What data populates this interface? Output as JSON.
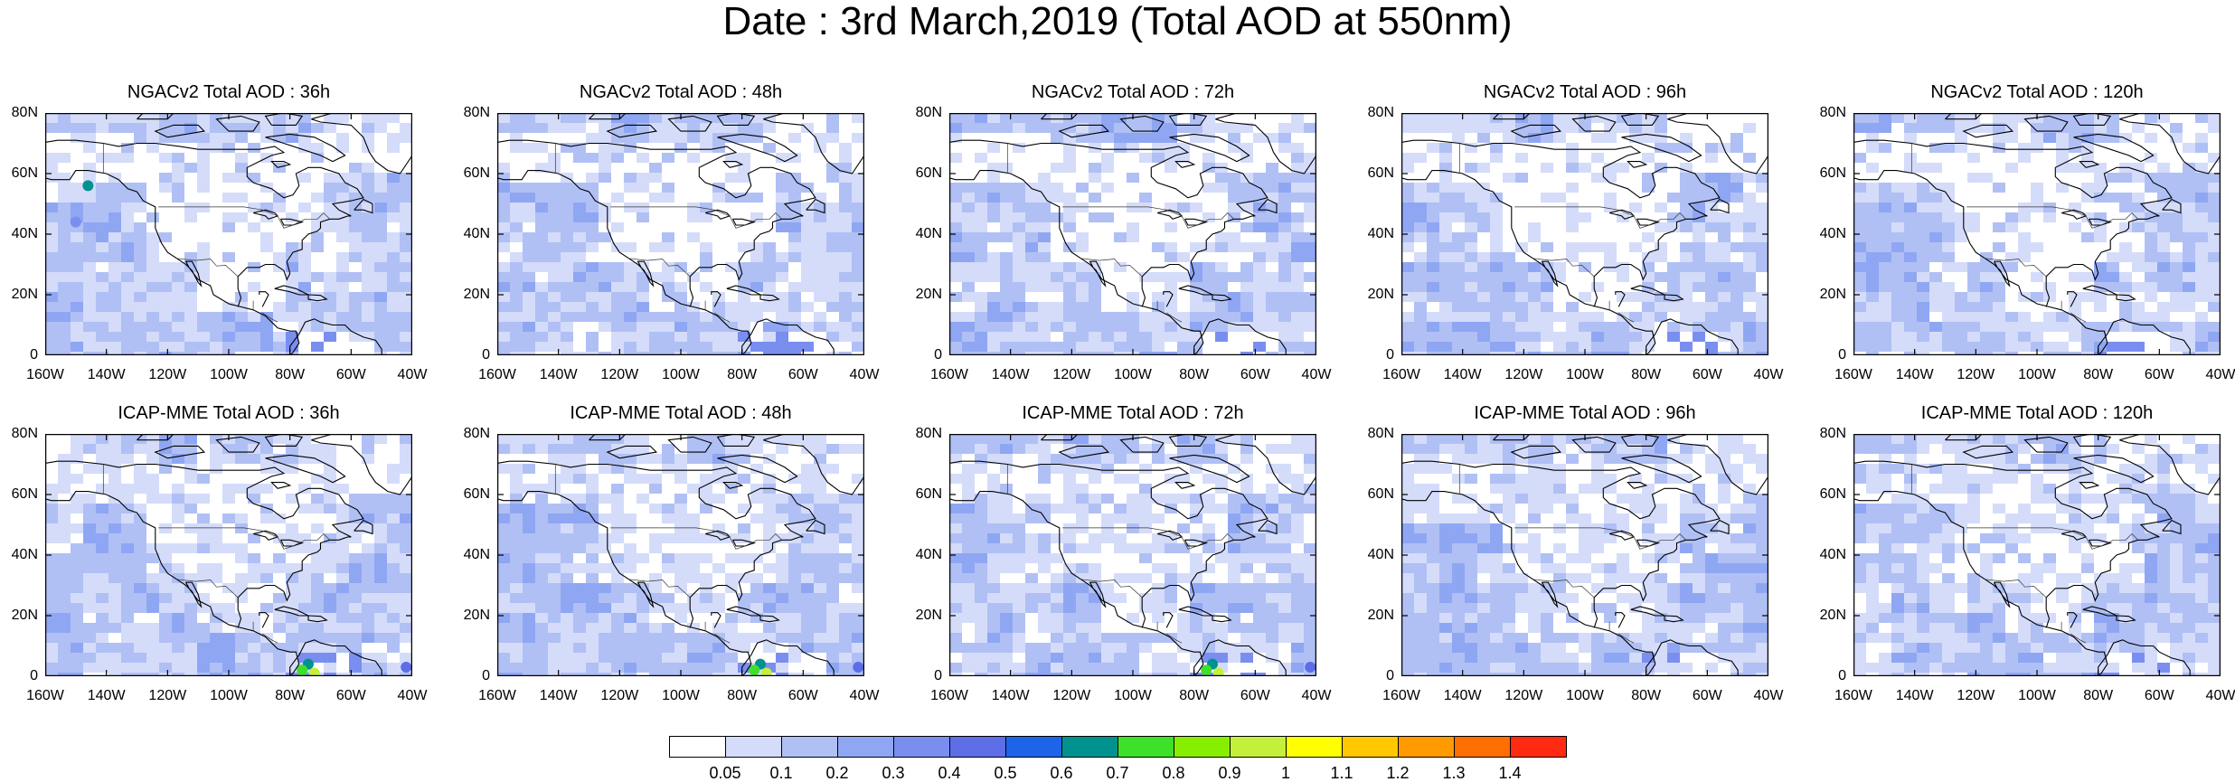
{
  "title": "Date : 3rd March,2019 (Total AOD at 550nm)",
  "panels": [
    {
      "title": "NGACv2 Total AOD : 36h"
    },
    {
      "title": "NGACv2 Total AOD : 48h"
    },
    {
      "title": "NGACv2 Total AOD : 72h"
    },
    {
      "title": "NGACv2 Total AOD : 96h"
    },
    {
      "title": "NGACv2 Total AOD : 120h"
    },
    {
      "title": "ICAP-MME Total AOD : 36h"
    },
    {
      "title": "ICAP-MME Total AOD : 48h"
    },
    {
      "title": "ICAP-MME Total AOD : 72h"
    },
    {
      "title": "ICAP-MME Total AOD : 96h"
    },
    {
      "title": "ICAP-MME Total AOD : 120h"
    }
  ],
  "lat_labels": [
    "80N",
    "60N",
    "40N",
    "20N",
    "0"
  ],
  "lon_labels": [
    "160W",
    "140W",
    "120W",
    "100W",
    "80W",
    "60W",
    "40W"
  ],
  "colorbar": {
    "levels": [
      "0.05",
      "0.1",
      "0.2",
      "0.3",
      "0.4",
      "0.5",
      "0.6",
      "0.7",
      "0.8",
      "0.9",
      "1",
      "1.1",
      "1.2",
      "1.3",
      "1.4"
    ],
    "colors": [
      "#ffffff",
      "#d4dcfa",
      "#b0c0f5",
      "#8fa6f3",
      "#7a8ef0",
      "#5d6ee6",
      "#1e64e8",
      "#00928f",
      "#3fe02a",
      "#88ee00",
      "#c4f03c",
      "#ffff00",
      "#ffc800",
      "#ff9b00",
      "#ff6e00",
      "#ff2a12"
    ]
  },
  "colors": {
    "ocean_base": "#b9c7f6",
    "land_base": "#ffffff"
  }
}
